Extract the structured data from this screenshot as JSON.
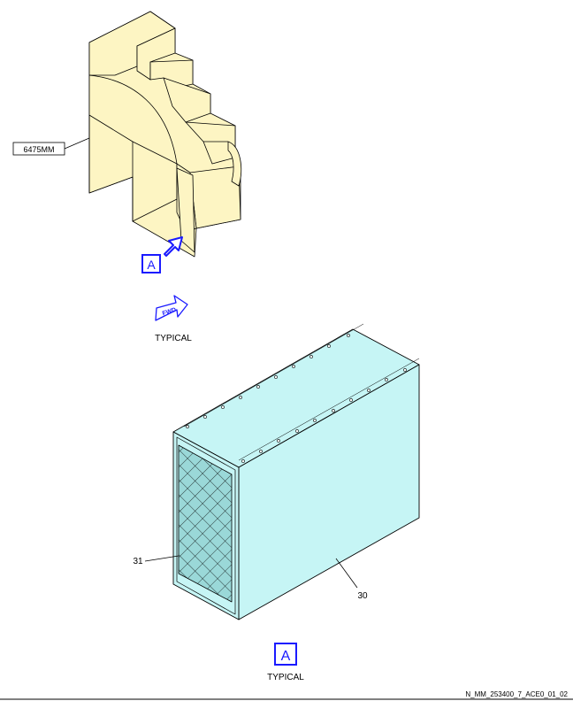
{
  "callouts": {
    "zone": "6475MM",
    "filter_element": "31",
    "filter_housing": "30"
  },
  "view_marker_top": "A",
  "view_marker_bottom": "A",
  "fwd_arrow_text": "FWD",
  "typical_label_top": "TYPICAL",
  "typical_label_bottom": "TYPICAL",
  "drawing_id": "N_MM_253400_7_ACE0_01_02",
  "colors": {
    "structure_fill": "#fdf5c3",
    "housing_fill": "#c6f5f5",
    "accent_blue": "#1a1aff",
    "filter_mesh": "#9ad8d8"
  }
}
